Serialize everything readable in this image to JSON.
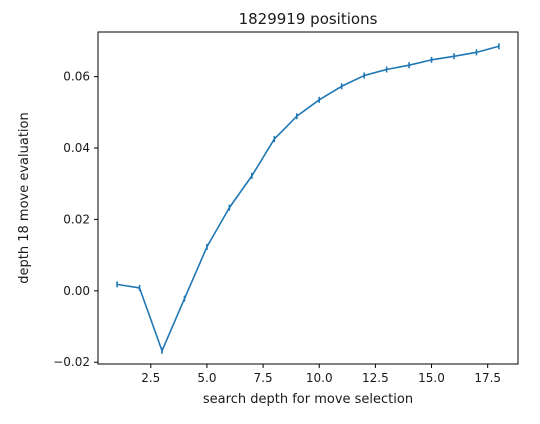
{
  "colors": {
    "line": "#1f77b4",
    "axes": "#000000",
    "background": "#ffffff"
  },
  "chart_data": {
    "type": "line",
    "title": "1829919 positions",
    "xlabel": "search depth for move selection",
    "ylabel": "depth 18 move evaluation",
    "xlim": [
      0.15,
      18.85
    ],
    "ylim": [
      -0.0205,
      0.0725
    ],
    "grid": false,
    "x_ticks": [
      2.5,
      5.0,
      7.5,
      10.0,
      12.5,
      15.0,
      17.5
    ],
    "x_tick_labels": [
      "2.5",
      "5.0",
      "7.5",
      "10.0",
      "12.5",
      "15.0",
      "17.5"
    ],
    "y_ticks": [
      -0.02,
      0.0,
      0.02,
      0.04,
      0.06
    ],
    "y_tick_labels": [
      "−0.02",
      "0.00",
      "0.02",
      "0.04",
      "0.06"
    ],
    "series": [
      {
        "marker": "vertical error bar",
        "x": [
          1,
          2,
          3,
          4,
          5,
          6,
          7,
          8,
          9,
          10,
          11,
          12,
          13,
          14,
          15,
          16,
          17,
          18
        ],
        "values": [
          0.0018,
          0.0008,
          -0.0168,
          -0.0022,
          0.0123,
          0.0233,
          0.0322,
          0.0425,
          0.0489,
          0.0535,
          0.0573,
          0.0603,
          0.062,
          0.0632,
          0.0647,
          0.0657,
          0.0668,
          0.0685
        ]
      }
    ]
  }
}
